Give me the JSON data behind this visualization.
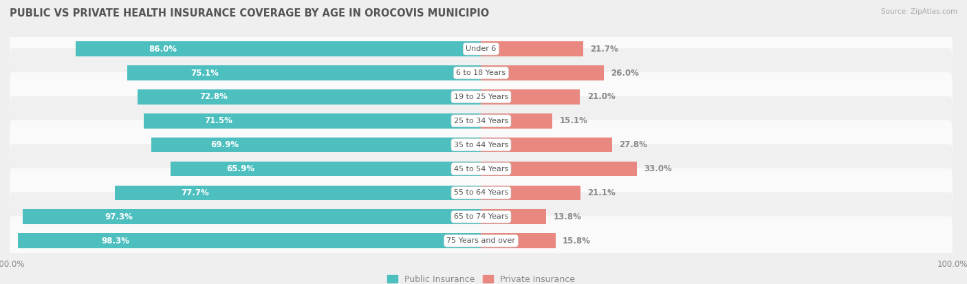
{
  "title": "PUBLIC VS PRIVATE HEALTH INSURANCE COVERAGE BY AGE IN OROCOVIS MUNICIPIO",
  "source": "Source: ZipAtlas.com",
  "categories": [
    "Under 6",
    "6 to 18 Years",
    "19 to 25 Years",
    "25 to 34 Years",
    "35 to 44 Years",
    "45 to 54 Years",
    "55 to 64 Years",
    "65 to 74 Years",
    "75 Years and over"
  ],
  "public_values": [
    86.0,
    75.1,
    72.8,
    71.5,
    69.9,
    65.9,
    77.7,
    97.3,
    98.3
  ],
  "private_values": [
    21.7,
    26.0,
    21.0,
    15.1,
    27.8,
    33.0,
    21.1,
    13.8,
    15.8
  ],
  "public_color": "#4DBFBF",
  "private_color": "#E88880",
  "bg_color": "#EFEFEF",
  "row_colors": [
    "#FAFAFA",
    "#F0F0F0"
  ],
  "title_color": "#555555",
  "source_color": "#AAAAAA",
  "pub_label_color": "#FFFFFF",
  "priv_label_color": "#888888",
  "cat_label_color": "#555555",
  "legend_public": "Public Insurance",
  "legend_private": "Private Insurance",
  "max_val": 100.0,
  "bar_height": 0.62,
  "title_fontsize": 10.5,
  "bar_label_fontsize": 8.5,
  "category_fontsize": 8.0,
  "axis_fontsize": 8.5,
  "legend_fontsize": 9,
  "source_fontsize": 7.5
}
